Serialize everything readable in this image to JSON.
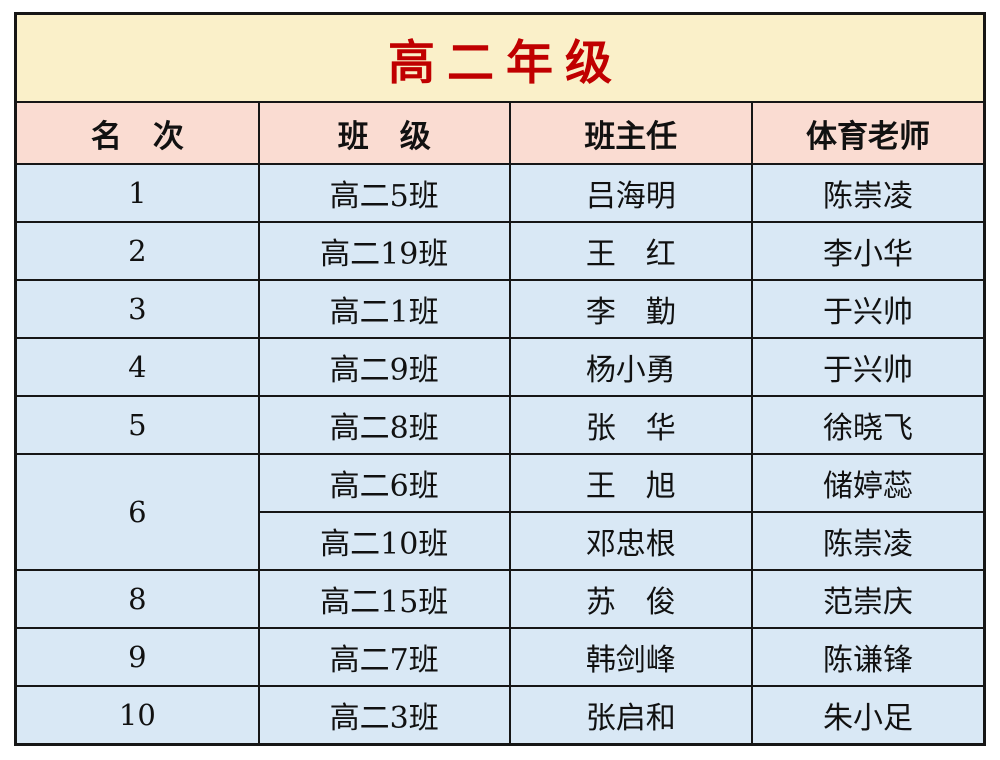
{
  "table": {
    "title": "高二年级",
    "title_color": "#c00000",
    "title_bg": "#faf0c9",
    "header_bg": "#fadcd2",
    "row_bg": "#d9e8f5",
    "border_color": "#161616",
    "columns": [
      "名　次",
      "班　级",
      "班主任",
      "体育老师"
    ],
    "groups": [
      {
        "rank": "1",
        "entries": [
          {
            "class": "高二5班",
            "head_teacher": "吕海明",
            "pe_teacher": "陈崇凌"
          }
        ]
      },
      {
        "rank": "2",
        "entries": [
          {
            "class": "高二19班",
            "head_teacher": "王　红",
            "pe_teacher": "李小华"
          }
        ]
      },
      {
        "rank": "3",
        "entries": [
          {
            "class": "高二1班",
            "head_teacher": "李　勤",
            "pe_teacher": "于兴帅"
          }
        ]
      },
      {
        "rank": "4",
        "entries": [
          {
            "class": "高二9班",
            "head_teacher": "杨小勇",
            "pe_teacher": "于兴帅"
          }
        ]
      },
      {
        "rank": "5",
        "entries": [
          {
            "class": "高二8班",
            "head_teacher": "张　华",
            "pe_teacher": "徐晓飞"
          }
        ]
      },
      {
        "rank": "6",
        "entries": [
          {
            "class": "高二6班",
            "head_teacher": "王　旭",
            "pe_teacher": "储婷蕊"
          },
          {
            "class": "高二10班",
            "head_teacher": "邓忠根",
            "pe_teacher": "陈崇凌"
          }
        ]
      },
      {
        "rank": "8",
        "entries": [
          {
            "class": "高二15班",
            "head_teacher": "苏　俊",
            "pe_teacher": "范崇庆"
          }
        ]
      },
      {
        "rank": "9",
        "entries": [
          {
            "class": "高二7班",
            "head_teacher": "韩剑峰",
            "pe_teacher": "陈谦锋"
          }
        ]
      },
      {
        "rank": "10",
        "entries": [
          {
            "class": "高二3班",
            "head_teacher": "张启和",
            "pe_teacher": "朱小足"
          }
        ]
      }
    ]
  }
}
